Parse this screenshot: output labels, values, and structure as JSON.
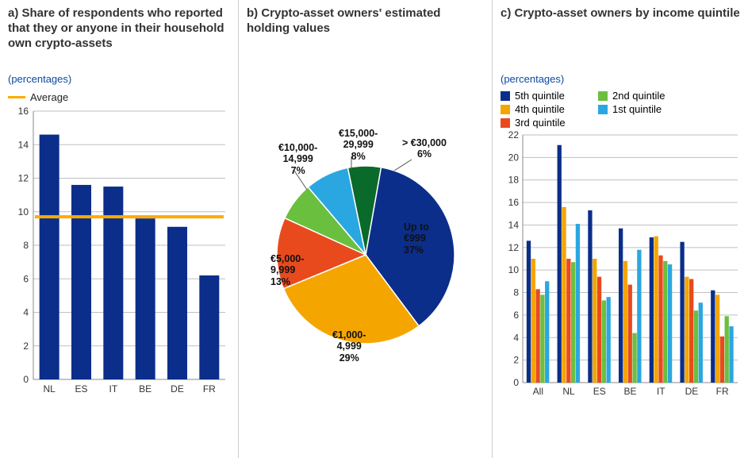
{
  "panelA": {
    "title": "a) Share of respondents who reported that they or anyone in their household own crypto-assets",
    "subtitle": "(percentages)",
    "legend_average": "Average",
    "type": "bar",
    "categories": [
      "NL",
      "ES",
      "IT",
      "BE",
      "DE",
      "FR"
    ],
    "values": [
      14.6,
      11.6,
      11.5,
      9.6,
      9.1,
      6.2
    ],
    "bar_color": "#0b2e8a",
    "average_value": 9.7,
    "average_color": "#ffaa00",
    "ylim": [
      0,
      16
    ],
    "ytick_step": 2,
    "grid_color": "#bfbfbf",
    "axis_fontsize": 12,
    "bar_width": 0.62
  },
  "panelB": {
    "title": "b) Crypto-asset owners' estimated holding values",
    "type": "pie",
    "slices": [
      {
        "label": "Up to €999",
        "pct": 37,
        "color": "#0b2e8a"
      },
      {
        "label": "€1,000-4,999",
        "pct": 29,
        "color": "#f5a500"
      },
      {
        "label": "€5,000-9,999",
        "pct": 13,
        "color": "#e84a1e"
      },
      {
        "label": "€10,000-14,999",
        "pct": 7,
        "color": "#6bbf3f"
      },
      {
        "label": "€15,000-29,999",
        "pct": 8,
        "color": "#2aa7e0"
      },
      {
        "label": "> €30,000",
        "pct": 6,
        "color": "#0a6a2b"
      }
    ],
    "start_angle_deg": 10,
    "background_color": "#ffffff",
    "label_fontsize": 12.5
  },
  "panelC": {
    "title": "c) Crypto-asset owners by income quintile",
    "subtitle": "(percentages)",
    "type": "grouped-bar",
    "series": [
      {
        "name": "5th quintile",
        "color": "#0b2e8a"
      },
      {
        "name": "4th quintile",
        "color": "#f5a500"
      },
      {
        "name": "3rd quintile",
        "color": "#e84a1e"
      },
      {
        "name": "2nd quintile",
        "color": "#6bbf3f"
      },
      {
        "name": "1st quintile",
        "color": "#2aa7e0"
      }
    ],
    "groups": [
      "All",
      "NL",
      "ES",
      "BE",
      "IT",
      "DE",
      "FR"
    ],
    "values": [
      [
        12.6,
        21.1,
        15.3,
        13.7,
        12.9,
        12.5,
        8.2
      ],
      [
        11.0,
        15.6,
        11.0,
        10.8,
        13.0,
        9.4,
        7.8
      ],
      [
        8.3,
        11.0,
        9.4,
        8.7,
        11.3,
        9.2,
        4.1
      ],
      [
        7.8,
        10.7,
        7.3,
        4.4,
        10.8,
        6.4,
        5.9
      ],
      [
        9.0,
        14.1,
        7.6,
        11.8,
        10.5,
        7.1,
        5.0
      ]
    ],
    "ylim": [
      0,
      22
    ],
    "ytick_step": 2,
    "grid_color": "#bfbfbf",
    "bar_width": 0.15,
    "axis_fontsize": 12
  }
}
